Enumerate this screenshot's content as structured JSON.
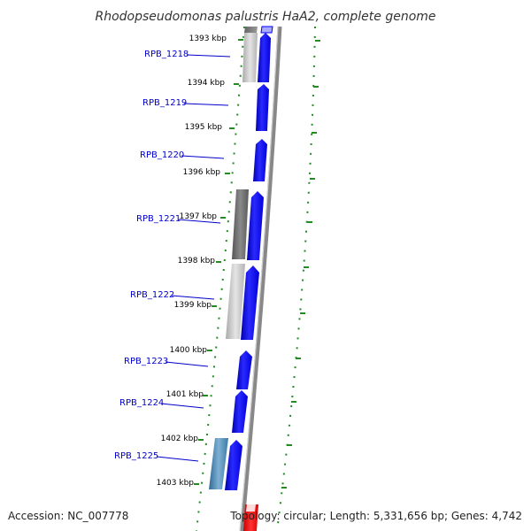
{
  "title": "Rhodopseudomonas palustris HaA2, complete genome",
  "footer": {
    "accession": "Accession: NC_007778",
    "topology": "Topology: circular; Length: 5,331,656 bp; Genes: 4,742"
  },
  "ticks": [
    "1393 kbp",
    "1394 kbp",
    "1395 kbp",
    "1396 kbp",
    "1397 kbp",
    "1398 kbp",
    "1399 kbp",
    "1400 kbp",
    "1401 kbp",
    "1402 kbp",
    "1403 kbp"
  ],
  "genes": [
    {
      "label": "RPB_1218"
    },
    {
      "label": "RPB_1219"
    },
    {
      "label": "RPB_1220"
    },
    {
      "label": "RPB_1221"
    },
    {
      "label": "RPB_1222"
    },
    {
      "label": "RPB_1223"
    },
    {
      "label": "RPB_1224"
    },
    {
      "label": "RPB_1225"
    }
  ],
  "colors": {
    "forward_gene": "#0000ff",
    "backbone": "#888888",
    "dotted_ring": "#228b22",
    "label_line": "#0000cc",
    "top_fragment": "#aaaaff",
    "bottom_fragment": "#ff0000"
  }
}
